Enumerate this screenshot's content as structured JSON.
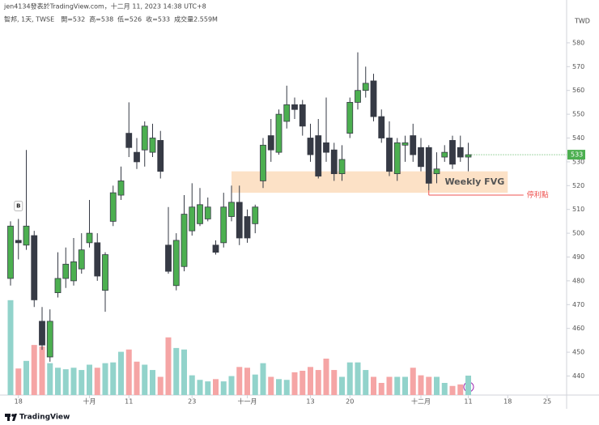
{
  "header": {
    "byline": "jen4134發表於TradingView.com，十二月 11, 2023 14:38 UTC+8",
    "symbol": "智邦, 1天, TWSE",
    "legend": [
      "開=532",
      "高=538",
      "低=526",
      "收=533",
      "成交量2.559M"
    ]
  },
  "footer": "TradingView",
  "chart_data": {
    "type": "candlestick",
    "currency": "TWD",
    "categories": [
      "09-15",
      "09-18",
      "09-19",
      "09-20",
      "09-21",
      "09-22",
      "09-25",
      "09-26",
      "09-27",
      "09-28",
      "10-02",
      "10-03",
      "10-04",
      "10-05",
      "10-06",
      "10-11",
      "10-12",
      "10-13",
      "10-16",
      "10-17",
      "10-18",
      "10-19",
      "10-20",
      "10-23",
      "10-24",
      "10-25",
      "10-26",
      "10-27",
      "10-30",
      "10-31",
      "11-01",
      "11-02",
      "11-03",
      "11-06",
      "11-07",
      "11-08",
      "11-09",
      "11-10",
      "11-13",
      "11-14",
      "11-15",
      "11-16",
      "11-17",
      "11-20",
      "11-21",
      "11-22",
      "11-23",
      "11-24",
      "11-27",
      "11-28",
      "11-29",
      "11-30",
      "12-01",
      "12-04",
      "12-05",
      "12-06",
      "12-07",
      "12-08",
      "12-11",
      "12-12",
      "12-13",
      "12-14",
      "12-15",
      "12-18",
      "12-19",
      "12-20",
      "12-21",
      "12-22",
      "12-25",
      "12-26",
      "12-27"
    ],
    "open": [
      481,
      497,
      495,
      499,
      463,
      448,
      475,
      481,
      480,
      485,
      496,
      496,
      476,
      505,
      516,
      542,
      534,
      535,
      534,
      539,
      495,
      478,
      486,
      501,
      504,
      506,
      495,
      496,
      507,
      513,
      507,
      504,
      522,
      541,
      534,
      547,
      554,
      554,
      540,
      541,
      538,
      535,
      525,
      542,
      555,
      560,
      564,
      549,
      540,
      525,
      537,
      541,
      536,
      536,
      525,
      532,
      539,
      536,
      532,
      null,
      null,
      null,
      null,
      null,
      null,
      null,
      null,
      null,
      null,
      null,
      null
    ],
    "high": [
      505,
      506,
      535,
      501,
      469,
      468,
      492,
      494,
      498,
      500,
      514,
      500,
      492,
      520,
      528,
      555,
      540,
      547,
      546,
      543,
      511,
      500,
      516,
      521,
      519,
      515,
      497,
      517,
      520,
      520,
      510,
      512,
      540,
      548,
      552,
      562,
      557,
      556,
      546,
      548,
      557,
      538,
      537,
      557,
      576,
      570,
      567,
      552,
      547,
      540,
      541,
      546,
      540,
      537,
      534,
      537,
      541,
      541,
      538,
      null,
      null,
      null,
      null,
      null,
      null,
      null,
      null,
      null,
      null,
      null,
      null
    ],
    "low": [
      478,
      489,
      493,
      469,
      451,
      446,
      473,
      477,
      478,
      483,
      494,
      480,
      467,
      503,
      514,
      532,
      527,
      528,
      532,
      523,
      483,
      476,
      484,
      499,
      503,
      505,
      491,
      494,
      505,
      495,
      496,
      500,
      519,
      530,
      533,
      544,
      548,
      541,
      530,
      523,
      530,
      522,
      522,
      540,
      552,
      557,
      547,
      538,
      524,
      522,
      530,
      530,
      526,
      518,
      521,
      530,
      527,
      530,
      526,
      null,
      null,
      null,
      null,
      null,
      null,
      null,
      null,
      null,
      null,
      null,
      null
    ],
    "close": [
      503,
      496,
      503,
      472,
      453,
      463,
      481,
      487,
      488,
      493,
      500,
      482,
      491,
      517,
      522,
      536,
      530,
      545,
      540,
      526,
      484,
      497,
      508,
      511,
      512,
      511,
      492,
      511,
      513,
      498,
      498,
      511,
      537,
      535,
      550,
      554,
      552,
      545,
      533,
      524,
      534,
      525,
      531,
      555,
      560,
      563,
      549,
      540,
      526,
      538,
      538,
      533,
      528,
      521,
      527,
      534,
      529,
      532,
      533,
      null,
      null,
      null,
      null,
      null,
      null,
      null,
      null,
      null,
      null,
      null,
      null
    ],
    "volume": [
      12.5,
      3.5,
      4.5,
      6.6,
      6.4,
      4.2,
      3.6,
      3.4,
      3.6,
      3.3,
      4.0,
      3.6,
      4.2,
      4.3,
      5.7,
      6.0,
      4.4,
      4.0,
      3.3,
      2.4,
      7.6,
      6.2,
      6.0,
      2.6,
      2.0,
      1.8,
      2.1,
      1.8,
      2.5,
      3.7,
      3.6,
      2.7,
      4.2,
      2.4,
      2.1,
      2.0,
      3.0,
      3.2,
      3.7,
      3.3,
      4.8,
      3.3,
      2.4,
      4.3,
      4.3,
      3.3,
      2.4,
      1.6,
      2.4,
      2.4,
      2.4,
      3.6,
      2.6,
      2.4,
      2.4,
      1.6,
      1.2,
      1.4,
      2.559,
      null,
      null,
      null,
      null,
      null,
      null,
      null,
      null,
      null,
      null,
      null,
      null
    ],
    "volume_lim": [
      0,
      16
    ],
    "ylim": [
      432,
      598
    ],
    "yticks": [
      440,
      450,
      460,
      470,
      480,
      490,
      500,
      510,
      520,
      530,
      540,
      550,
      560,
      570,
      580
    ],
    "xticks": [
      {
        "value": "09-18",
        "label": "18"
      },
      {
        "value": "10-02",
        "label": "十月"
      },
      {
        "value": "10-11",
        "label": "11"
      },
      {
        "value": "10-23",
        "label": "23"
      },
      {
        "value": "11-01",
        "label": "十一月"
      },
      {
        "value": "11-13",
        "label": "13"
      },
      {
        "value": "11-20",
        "label": "20"
      },
      {
        "value": "12-01",
        "label": "十二月"
      },
      {
        "value": "12-11",
        "label": "11"
      },
      {
        "value": "12-18",
        "label": "18"
      },
      {
        "value": "12-25",
        "label": "25"
      }
    ],
    "up_color": "#4caf50",
    "down_color": "#363a45",
    "volume_up_color": "#92d3cb",
    "volume_down_color": "#f5a5a5",
    "zone": {
      "label": "Weekly FVG",
      "from": "10-30",
      "to": "12-18",
      "low": 517,
      "high": 526,
      "color": "#fbdcbc"
    },
    "stop_line": {
      "label": "停利點",
      "value": 516,
      "from": "12-04",
      "to": "12-20",
      "color": "#ef5350"
    },
    "markers": [
      {
        "date": "09-18",
        "label": "B"
      }
    ]
  }
}
